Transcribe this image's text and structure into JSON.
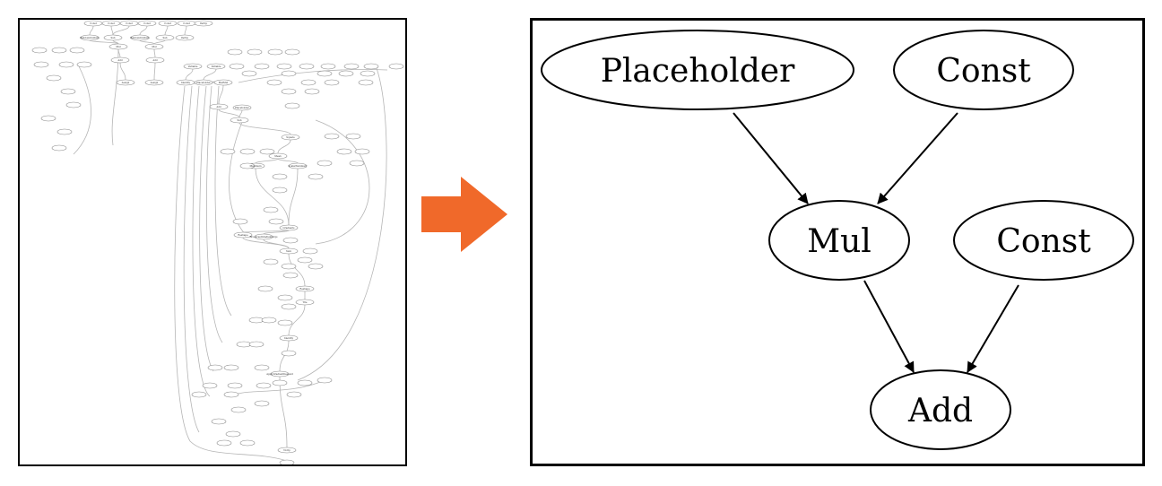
{
  "right_graph": {
    "nodes": [
      {
        "id": "placeholder",
        "label": "Placeholder"
      },
      {
        "id": "const1",
        "label": "Const"
      },
      {
        "id": "mul",
        "label": "Mul"
      },
      {
        "id": "const2",
        "label": "Const"
      },
      {
        "id": "add",
        "label": "Add"
      }
    ],
    "edges": [
      {
        "from": "placeholder",
        "to": "mul"
      },
      {
        "from": "const1",
        "to": "mul"
      },
      {
        "from": "mul",
        "to": "add"
      },
      {
        "from": "const2",
        "to": "add"
      }
    ]
  },
  "left_graph": {
    "nodes": [
      {
        "label": "Const"
      },
      {
        "label": "Const"
      },
      {
        "label": "Const"
      },
      {
        "label": "Const"
      },
      {
        "label": "Const"
      },
      {
        "label": "Const"
      },
      {
        "label": "VarOp"
      },
      {
        "label": "RandomUniform"
      },
      {
        "label": "Sub"
      },
      {
        "label": "RandomUniform"
      },
      {
        "label": "Sub"
      },
      {
        "label": "VarOp"
      },
      {
        "label": "Mul"
      },
      {
        "label": "Mul"
      },
      {
        "label": "Add"
      },
      {
        "label": "Add"
      },
      {
        "label": "Assign"
      },
      {
        "label": "Assign"
      },
      {
        "label": "Variable"
      },
      {
        "label": "Variable"
      },
      {
        "label": "Identity"
      },
      {
        "label": "Placeholder"
      },
      {
        "label": "MatMul"
      },
      {
        "label": "Add"
      },
      {
        "label": "Placeholder"
      },
      {
        "label": "Sub"
      },
      {
        "label": "Square"
      },
      {
        "label": "Mean"
      },
      {
        "label": "Maximum"
      },
      {
        "label": "ScalarSummary"
      },
      {
        "label": "Gradients"
      },
      {
        "label": "Reshape"
      },
      {
        "label": "BroadcastGradientArgs"
      },
      {
        "label": "Sum"
      },
      {
        "label": "Reshape"
      },
      {
        "label": "Tile"
      },
      {
        "label": "Identity"
      },
      {
        "label": "ApplyGradientDescent"
      },
      {
        "label": "NoOp"
      }
    ]
  },
  "colors": {
    "accent_arrow": "#f0692a",
    "node_stroke": "#000000",
    "left_edge": "#b5b5b5",
    "left_node_stroke": "#8a8a8a"
  }
}
